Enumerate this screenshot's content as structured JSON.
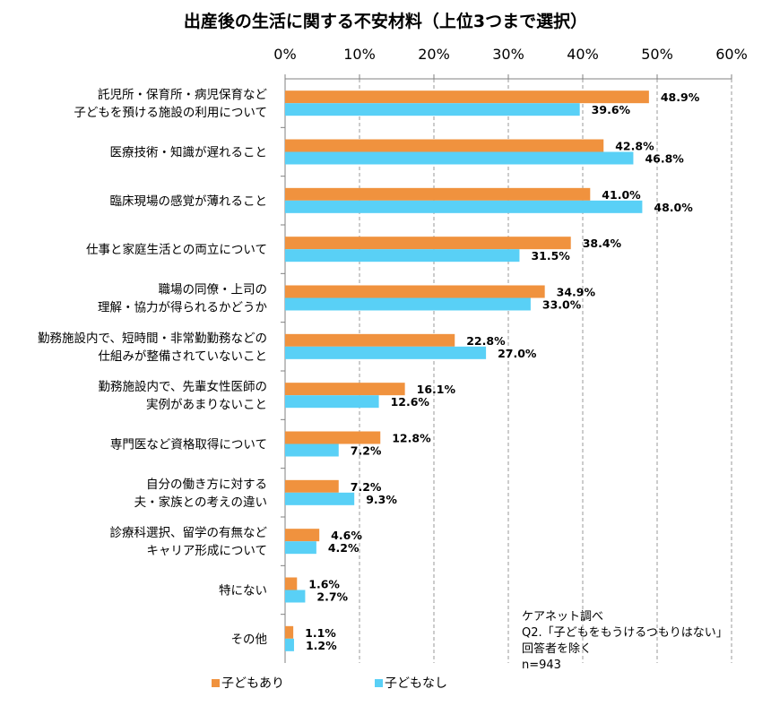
{
  "chart_data": {
    "type": "bar",
    "orientation": "horizontal",
    "title": "出産後の生活に関する不安材料（上位3つまで選択）",
    "categories": [
      [
        "託児所・保育所・病児保育など",
        "子どもを預ける施設の利用について"
      ],
      [
        "医療技術・知識が遅れること"
      ],
      [
        "臨床現場の感覚が薄れること"
      ],
      [
        "仕事と家庭生活との両立について"
      ],
      [
        "職場の同僚・上司の",
        "理解・協力が得られるかどうか"
      ],
      [
        "勤務施設内で、短時間・非常勤勤務などの",
        "仕組みが整備されていないこと"
      ],
      [
        "勤務施設内で、先輩女性医師の",
        "実例があまりないこと"
      ],
      [
        "専門医など資格取得について"
      ],
      [
        "自分の働き方に対する",
        "夫・家族との考えの違い"
      ],
      [
        "診療科選択、留学の有無など",
        "キャリア形成について"
      ],
      [
        "特にない"
      ],
      [
        "その他"
      ]
    ],
    "series": [
      {
        "name": "子どもあり",
        "color": "#f0923e",
        "values": [
          48.9,
          42.8,
          41.0,
          38.4,
          34.9,
          22.8,
          16.1,
          12.8,
          7.2,
          4.6,
          1.6,
          1.1
        ],
        "labels": [
          "48.9%",
          "42.8%",
          "41.0%",
          "38.4%",
          "34.9%",
          "22.8%",
          "16.1%",
          "12.8%",
          "7.2%",
          "4.6%",
          "1.6%",
          "1.1%"
        ]
      },
      {
        "name": "子どもなし",
        "color": "#59d0f6",
        "values": [
          39.6,
          46.8,
          48.0,
          31.5,
          33.0,
          27.0,
          12.6,
          7.2,
          9.3,
          4.2,
          2.7,
          1.2
        ],
        "labels": [
          "39.6%",
          "46.8%",
          "48.0%",
          "31.5%",
          "33.0%",
          "27.0%",
          "12.6%",
          "7.2%",
          "9.3%",
          "4.2%",
          "2.7%",
          "1.2%"
        ]
      }
    ],
    "xlim": [
      0,
      60
    ],
    "xticks": [
      0,
      10,
      20,
      30,
      40,
      50,
      60
    ],
    "xtick_labels": [
      "0%",
      "10%",
      "20%",
      "30%",
      "40%",
      "50%",
      "60%"
    ],
    "grid": true,
    "legend_position": "bottom"
  },
  "notes": [
    "ケアネット調べ",
    "Q2.「子どもをもうけるつもりはない」",
    "回答者を除く",
    "n=943"
  ]
}
